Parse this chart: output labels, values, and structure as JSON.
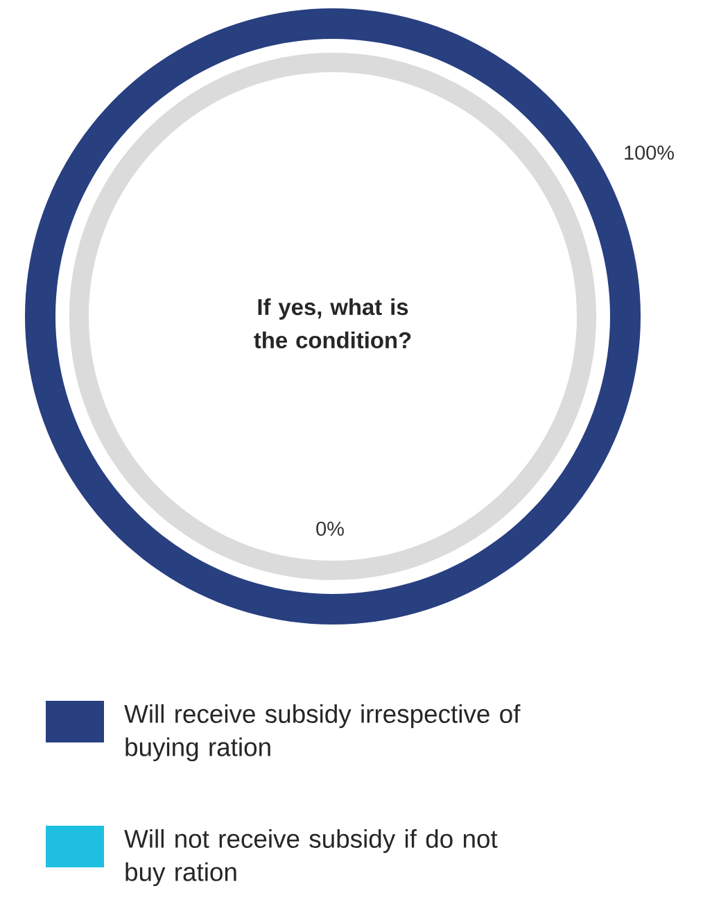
{
  "chart_data": {
    "type": "donut",
    "title": "If yes, what is the condition?",
    "categories": [
      "Will receive subsidy irrespective of buying ration",
      "Will not receive subsidy if do not buy ration"
    ],
    "values": [
      100,
      0
    ],
    "colors": [
      "#283f80",
      "#1ebfe0"
    ],
    "value_labels": [
      "100%",
      "0%"
    ],
    "legend": "bottom"
  }
}
